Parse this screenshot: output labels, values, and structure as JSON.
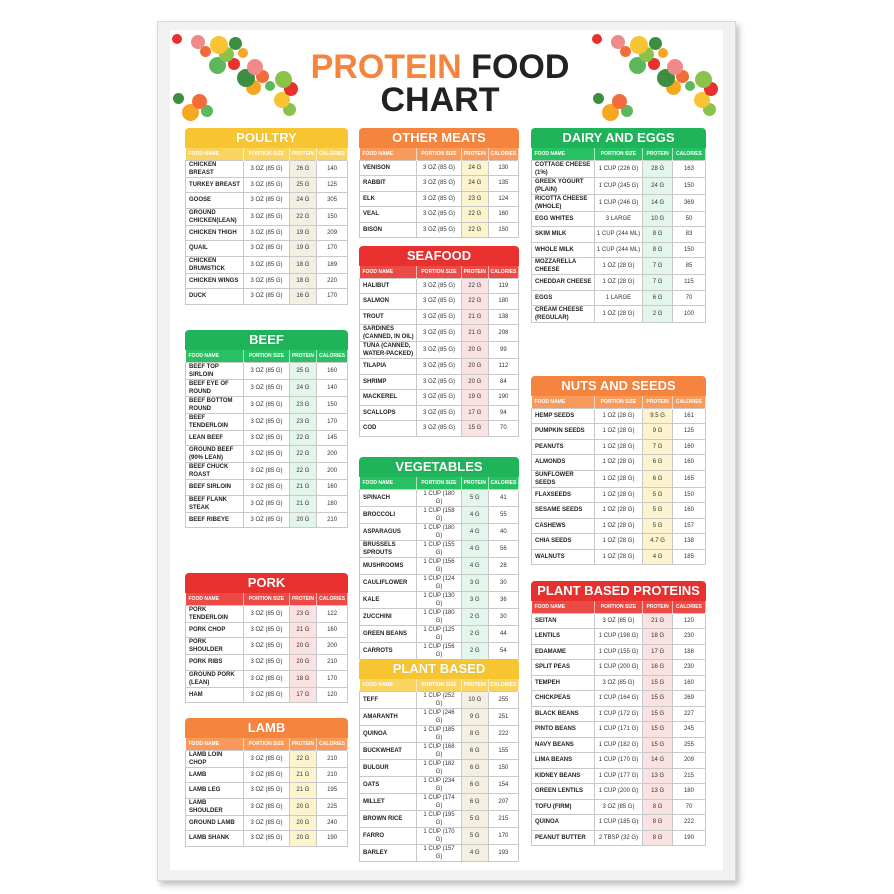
{
  "title": {
    "line1a": "PROTEIN",
    "line1b": "FOOD",
    "line2": "CHART"
  },
  "columns": [
    "FOOD NAME",
    "PORTION SIZE",
    "PROTEIN",
    "CALORIES"
  ],
  "themes": {
    "yellow": {
      "head": "#f7c531",
      "sub": "#f9d461",
      "tint": "#f4efe3"
    },
    "green": {
      "head": "#1fb45a",
      "sub": "#27c063",
      "tint": "#e4f6ec"
    },
    "orange": {
      "head": "#f5843f",
      "sub": "#f79a5c",
      "tint": "#fbf4cf"
    },
    "red": {
      "head": "#e8312f",
      "sub": "#ec4a45",
      "tint": "#fbe2e2"
    }
  },
  "sections": [
    {
      "id": "poultry",
      "title": "POULTRY",
      "theme": "yellow",
      "rows": [
        [
          "CHICKEN BREAST",
          "3 OZ (85 G)",
          "26 G",
          "140"
        ],
        [
          "TURKEY BREAST",
          "3 OZ (85 G)",
          "25 G",
          "125"
        ],
        [
          "GOOSE",
          "3 OZ (85 G)",
          "24 G",
          "305"
        ],
        [
          "GROUND CHICKEN(LEAN)",
          "3 OZ (85 G)",
          "22 G",
          "150"
        ],
        [
          "CHICKEN THIGH",
          "3 OZ (85 G)",
          "19 G",
          "209"
        ],
        [
          "QUAIL",
          "3 OZ (85 G)",
          "19 G",
          "170"
        ],
        [
          "CHICKEN DRUMSTICK",
          "3 OZ (85 G)",
          "18 G",
          "189"
        ],
        [
          "CHICKEN WINGS",
          "3 OZ (85 G)",
          "18 G",
          "220"
        ],
        [
          "DUCK",
          "3 OZ (85 G)",
          "16 G",
          "170"
        ]
      ]
    },
    {
      "id": "beef",
      "title": "BEEF",
      "theme": "green",
      "rows": [
        [
          "BEEF TOP SIRLOIN",
          "3 OZ (85 G)",
          "25 G",
          "160"
        ],
        [
          "BEEF EYE OF ROUND",
          "3 OZ (85 G)",
          "24 G",
          "140"
        ],
        [
          "BEEF BOTTOM ROUND",
          "3 OZ (85 G)",
          "23 G",
          "150"
        ],
        [
          "BEEF TENDERLOIN",
          "3 OZ (85 G)",
          "23 G",
          "170"
        ],
        [
          "LEAN BEEF",
          "3 OZ (85 G)",
          "22 G",
          "145"
        ],
        [
          "GROUND BEEF (90% LEAN)",
          "3 OZ (85 G)",
          "22 G",
          "200"
        ],
        [
          "BEEF CHUCK ROAST",
          "3 OZ (85 G)",
          "22 G",
          "200"
        ],
        [
          "BEEF SIRLOIN",
          "3 OZ (85 G)",
          "21 G",
          "160"
        ],
        [
          "BEEF FLANK STEAK",
          "3 OZ (85 G)",
          "21 G",
          "180"
        ],
        [
          "BEEF RIBEYE",
          "3 OZ (85 G)",
          "20 G",
          "210"
        ]
      ]
    },
    {
      "id": "pork",
      "title": "PORK",
      "theme": "red",
      "rows": [
        [
          "PORK TENDERLOIN",
          "3 OZ (85 G)",
          "23 G",
          "122"
        ],
        [
          "PORK CHOP",
          "3 OZ (85 G)",
          "21 G",
          "160"
        ],
        [
          "PORK SHOULDER",
          "3 OZ (85 G)",
          "20 G",
          "200"
        ],
        [
          "PORK RIBS",
          "3 OZ (85 G)",
          "20 G",
          "210"
        ],
        [
          "GROUND PORK (LEAN)",
          "3 OZ (85 G)",
          "18 G",
          "170"
        ],
        [
          "HAM",
          "3 OZ (85 G)",
          "17 G",
          "120"
        ]
      ]
    },
    {
      "id": "lamb",
      "title": "LAMB",
      "theme": "orange",
      "rows": [
        [
          "LAMB LOIN CHOP",
          "3 OZ (85 G)",
          "22 G",
          "210"
        ],
        [
          "LAMB",
          "3 OZ (85 G)",
          "21 G",
          "210"
        ],
        [
          "LAMB LEG",
          "3 OZ (85 G)",
          "21 G",
          "195"
        ],
        [
          "LAMB SHOULDER",
          "3 OZ (85 G)",
          "20 G",
          "225"
        ],
        [
          "GROUND LAMB",
          "3 OZ (85 G)",
          "20 G",
          "240"
        ],
        [
          "LAMB SHANK",
          "3 OZ (85 G)",
          "20 G",
          "190"
        ]
      ]
    },
    {
      "id": "othermeats",
      "title": "OTHER MEATS",
      "theme": "orange",
      "rows": [
        [
          "VENISON",
          "3 OZ (85 G)",
          "24 G",
          "130"
        ],
        [
          "RABBIT",
          "3 OZ (85 G)",
          "24 G",
          "135"
        ],
        [
          "ELK",
          "3 OZ (85 G)",
          "23 G",
          "124"
        ],
        [
          "VEAL",
          "3 OZ (85 G)",
          "22 G",
          "160"
        ],
        [
          "BISON",
          "3 OZ (85 G)",
          "22 G",
          "150"
        ]
      ]
    },
    {
      "id": "seafood",
      "title": "SEAFOOD",
      "theme": "red",
      "rows": [
        [
          "HALIBUT",
          "3 OZ (85 G)",
          "22 G",
          "119"
        ],
        [
          "SALMON",
          "3 OZ (85 G)",
          "22 G",
          "180"
        ],
        [
          "TROUT",
          "3 OZ (85 G)",
          "21 G",
          "138"
        ],
        [
          "SARDINES (CANNED, IN OIL)",
          "3 OZ (85 G)",
          "21 G",
          "208"
        ],
        [
          "TUNA (CANNED, WATER-PACKED)",
          "3 OZ (85 G)",
          "20 G",
          "99"
        ],
        [
          "TILAPIA",
          "3 OZ (85 G)",
          "20 G",
          "112"
        ],
        [
          "SHRIMP",
          "3 OZ (85 G)",
          "20 G",
          "84"
        ],
        [
          "MACKEREL",
          "3 OZ (85 G)",
          "19 G",
          "190"
        ],
        [
          "SCALLOPS",
          "3 OZ (85 G)",
          "17 G",
          "94"
        ],
        [
          "COD",
          "3 OZ (85 G)",
          "15 G",
          "70"
        ]
      ]
    },
    {
      "id": "vegetables",
      "title": "VEGETABLES",
      "theme": "green",
      "rows": [
        [
          "SPINACH",
          "1 CUP (180 G)",
          "5 G",
          "41"
        ],
        [
          "BROCCOLI",
          "1 CUP (158 G)",
          "4 G",
          "55"
        ],
        [
          "ASPARAGUS",
          "1 CUP (180 G)",
          "4 G",
          "40"
        ],
        [
          "BRUSSELS SPROUTS",
          "1 CUP (155 G)",
          "4 G",
          "56"
        ],
        [
          "MUSHROOMS",
          "1 CUP (156 G)",
          "4 G",
          "28"
        ],
        [
          "CAULIFLOWER",
          "1 CUP (124 G)",
          "3 G",
          "30"
        ],
        [
          "KALE",
          "1 CUP (130 G)",
          "3 G",
          "36"
        ],
        [
          "ZUCCHINI",
          "1 CUP (180 G)",
          "2 G",
          "30"
        ],
        [
          "GREEN BEANS",
          "1 CUP (125 G)",
          "2 G",
          "44"
        ],
        [
          "CARROTS",
          "1 CUP (156 G)",
          "2 G",
          "54"
        ]
      ]
    },
    {
      "id": "plantbased",
      "title": "PLANT BASED",
      "theme": "yellow",
      "rows": [
        [
          "TEFF",
          "1 CUP (252 G)",
          "10 G",
          "255"
        ],
        [
          "AMARANTH",
          "1 CUP (246 G)",
          "9 G",
          "251"
        ],
        [
          "QUINOA",
          "1 CUP (185 G)",
          "8 G",
          "222"
        ],
        [
          "BUCKWHEAT",
          "1 CUP (168 G)",
          "6 G",
          "155"
        ],
        [
          "BULGUR",
          "1 CUP (182 G)",
          "6 G",
          "150"
        ],
        [
          "OATS",
          "1 CUP (234 G)",
          "6 G",
          "154"
        ],
        [
          "MILLET",
          "1 CUP (174 G)",
          "6 G",
          "207"
        ],
        [
          "BROWN RICE",
          "1 CUP (195 G)",
          "5 G",
          "215"
        ],
        [
          "FARRO",
          "1 CUP (170 G)",
          "5 G",
          "170"
        ],
        [
          "BARLEY",
          "1 CUP (157 G)",
          "4 G",
          "193"
        ]
      ]
    },
    {
      "id": "dairy",
      "title": "DAIRY AND EGGS",
      "theme": "green",
      "rows": [
        [
          "COTTAGE CHEESE (1%)",
          "1 CUP (226 G)",
          "28 G",
          "163"
        ],
        [
          "GREEK YOGURT (PLAIN)",
          "1 CUP (245 G)",
          "24 G",
          "150"
        ],
        [
          "RICOTTA CHEESE (WHOLE)",
          "1 CUP (246 G)",
          "14 G",
          "369"
        ],
        [
          "EGG WHITES",
          "3 LARGE",
          "10 G",
          "50"
        ],
        [
          "SKIM MILK",
          "1 CUP (244 ML)",
          "8 G",
          "83"
        ],
        [
          "WHOLE MILK",
          "1 CUP (244 ML)",
          "8 G",
          "150"
        ],
        [
          "MOZZARELLA CHEESE",
          "1 OZ (28 G)",
          "7 G",
          "85"
        ],
        [
          "CHEDDAR CHEESE",
          "1 OZ (28 G)",
          "7 G",
          "115"
        ],
        [
          "EGGS",
          "1 LARGE",
          "6 G",
          "70"
        ],
        [
          "CREAM CHEESE (REGULAR)",
          "1 OZ (28 G)",
          "2 G",
          "100"
        ]
      ]
    },
    {
      "id": "nuts",
      "title": "NUTS AND SEEDS",
      "theme": "orange",
      "rows": [
        [
          "HEMP SEEDS",
          "1 OZ (28 G)",
          "9.5 G",
          "161"
        ],
        [
          "PUMPKIN SEEDS",
          "1 OZ (28 G)",
          "9 G",
          "125"
        ],
        [
          "PEANUTS",
          "1 OZ (28 G)",
          "7 G",
          "160"
        ],
        [
          "ALMONDS",
          "1 OZ (28 G)",
          "6 G",
          "160"
        ],
        [
          "SUNFLOWER SEEDS",
          "1 OZ (28 G)",
          "6 G",
          "165"
        ],
        [
          "FLAXSEEDS",
          "1 OZ (28 G)",
          "5 G",
          "150"
        ],
        [
          "SESAME SEEDS",
          "1 OZ (28 G)",
          "5 G",
          "160"
        ],
        [
          "CASHEWS",
          "1 OZ (28 G)",
          "5 G",
          "157"
        ],
        [
          "CHIA SEEDS",
          "1 OZ (28 G)",
          "4.7 G",
          "138"
        ],
        [
          "WALNUTS",
          "1 OZ (28 G)",
          "4 G",
          "185"
        ]
      ]
    },
    {
      "id": "pbp",
      "title": "PLANT BASED PROTEINS",
      "theme": "red",
      "rows": [
        [
          "SEITAN",
          "3 OZ (85 G)",
          "21 G",
          "120"
        ],
        [
          "LENTILS",
          "1 CUP (198 G)",
          "18 G",
          "230"
        ],
        [
          "EDAMAME",
          "1 CUP (155 G)",
          "17 G",
          "188"
        ],
        [
          "SPLIT PEAS",
          "1 CUP (200 G)",
          "16 G",
          "230"
        ],
        [
          "TEMPEH",
          "3 OZ (85 G)",
          "15 G",
          "160"
        ],
        [
          "CHICKPEAS",
          "1 CUP (164 G)",
          "15 G",
          "269"
        ],
        [
          "BLACK BEANS",
          "1 CUP (172 G)",
          "15 G",
          "227"
        ],
        [
          "PINTO BEANS",
          "1 CUP (171 G)",
          "15 G",
          "245"
        ],
        [
          "NAVY BEANS",
          "1 CUP (182 G)",
          "15 G",
          "255"
        ],
        [
          "LIMA BEANS",
          "1 CUP (170 G)",
          "14 G",
          "209"
        ],
        [
          "KIDNEY BEANS",
          "1 CUP (177 G)",
          "13 G",
          "215"
        ],
        [
          "GREEN LENTILS",
          "1 CUP (200 G)",
          "13 G",
          "180"
        ],
        [
          "TOFU (FIRM)",
          "3 OZ (85 G)",
          "8 G",
          "70"
        ],
        [
          "QUINOA",
          "1 CUP (185 G)",
          "8 G",
          "222"
        ],
        [
          "PEANUT BUTTER",
          "2 TBSP (32 G)",
          "8 G",
          "190"
        ]
      ]
    }
  ]
}
